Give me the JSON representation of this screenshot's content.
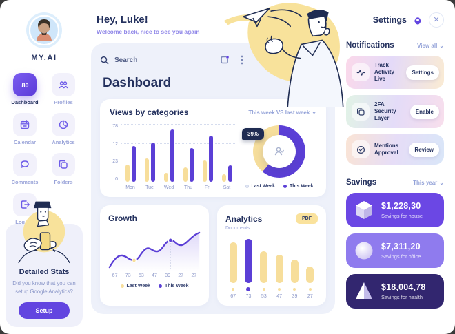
{
  "brand": {
    "name": "MY.AI"
  },
  "sidebar": {
    "items": [
      {
        "label": "Dashboard",
        "icon": "dashboard-gauge-icon",
        "active": true
      },
      {
        "label": "Profiles",
        "icon": "profiles-icon",
        "active": false
      },
      {
        "label": "Calendar",
        "icon": "calendar-icon",
        "active": false
      },
      {
        "label": "Analytics",
        "icon": "pie-chart-icon",
        "active": false
      },
      {
        "label": "Comments",
        "icon": "chat-bubble-icon",
        "active": false
      },
      {
        "label": "Folders",
        "icon": "folders-icon",
        "active": false
      },
      {
        "label": "Log out",
        "icon": "logout-icon",
        "active": false
      }
    ],
    "stats_card": {
      "title": "Detailed Stats",
      "text": "Did you know that you can setup Google Analytics?",
      "button": "Setup"
    }
  },
  "header": {
    "greeting": "Hey, Luke!",
    "subtitle": "Welcome back, nice to see you again"
  },
  "search": {
    "placeholder": "Search"
  },
  "main": {
    "page_title": "Dashboard"
  },
  "views_card": {
    "title": "Views by categories",
    "compare_label": "This week VS last week",
    "legend": [
      {
        "label": "Last Week"
      },
      {
        "label": "This Week"
      }
    ]
  },
  "growth_card": {
    "title": "Growth",
    "legend": [
      {
        "label": "Last Week"
      },
      {
        "label": "This Week"
      }
    ]
  },
  "analytics_card": {
    "title": "Analytics",
    "subtitle": "Documents",
    "badge": "PDF"
  },
  "right_panel": {
    "settings_label": "Settings",
    "notifications": {
      "title": "Notifications",
      "view_all": "View all",
      "items": [
        {
          "label": "Track Activity Live",
          "action": "Settings",
          "icon": "activity-pulse-icon"
        },
        {
          "label": "2FA Security Layer",
          "action": "Enable",
          "icon": "layers-icon"
        },
        {
          "label": "Mentions Approval",
          "action": "Review",
          "icon": "check-circle-icon"
        }
      ]
    },
    "savings": {
      "title": "Savings",
      "period": "This year",
      "items": [
        {
          "amount": "$1,228,30",
          "caption": "Savings for house",
          "icon": "cube-icon",
          "bg": "#6B47E4"
        },
        {
          "amount": "$7,311,20",
          "caption": "Savings for office",
          "icon": "sphere-icon",
          "bg": "#8F7BEE"
        },
        {
          "amount": "$18,004,78",
          "caption": "Savings for health",
          "icon": "pyramid-icon",
          "bg": "#32266F"
        }
      ]
    }
  },
  "colors": {
    "accent_purple": "#6245E0",
    "bar_purple": "#5B3FD6",
    "bar_yellow": "#F7DE9B",
    "navy_text": "#24315E",
    "muted_text": "#8A96C8",
    "panel_bg": "#EEF1FA",
    "badge_bg": "#1F2C52"
  },
  "icons": [
    "search-icon",
    "export-icon",
    "kebab-menu-icon",
    "gear-icon",
    "close-icon",
    "chevron-down-icon",
    "person-check-icon",
    "paper-plane-illustration",
    "phone-illustration"
  ],
  "chart_data": [
    {
      "type": "bar",
      "title": "Views by categories",
      "categories": [
        "Mon",
        "Tue",
        "Wed",
        "Thu",
        "Fri",
        "Sat"
      ],
      "series": [
        {
          "name": "Last Week",
          "color": "#F7DE9B",
          "values": [
            30,
            40,
            16,
            25,
            37,
            13
          ]
        },
        {
          "name": "This Week",
          "color": "#5B3FD6",
          "values": [
            62,
            68,
            90,
            58,
            80,
            28
          ]
        }
      ],
      "y_ticks": [
        "78",
        "12",
        "23",
        "0"
      ],
      "ylim": [
        0,
        100
      ],
      "grid": true,
      "legend_position": "bottom-right"
    },
    {
      "type": "pie",
      "title": "This week VS last week",
      "labels": [
        "This Week",
        "Last Week"
      ],
      "values": [
        61,
        39
      ],
      "colors": [
        "#5B3FD6",
        "#F6DE9C"
      ],
      "badge": "39%"
    },
    {
      "type": "line",
      "title": "Growth",
      "x": [
        "67",
        "73",
        "53",
        "47",
        "39",
        "27",
        "27"
      ],
      "markers": [
        {
          "x_index": 2,
          "color": "#F7DE9B",
          "name": "Last Week"
        },
        {
          "x_index": 4,
          "color": "#5B3FD6",
          "name": "This Week"
        }
      ]
    },
    {
      "type": "bar",
      "title": "Analytics",
      "categories": [
        "67",
        "73",
        "53",
        "47",
        "39",
        "27"
      ],
      "values": [
        67,
        73,
        53,
        47,
        39,
        27
      ],
      "highlight_index": 1,
      "colors": {
        "default": "#F7DE9B",
        "highlight": "#5B3FD6"
      }
    }
  ]
}
